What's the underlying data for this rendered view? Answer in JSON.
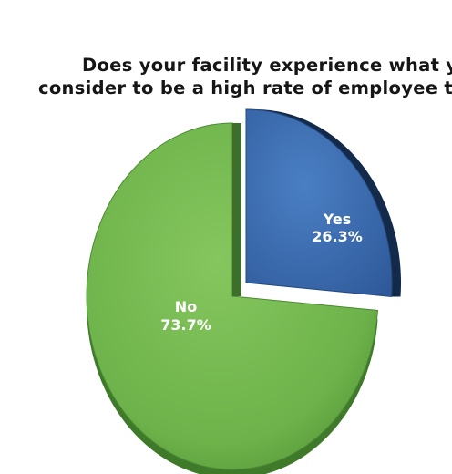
{
  "chart_data": {
    "type": "pie",
    "title_lines": [
      "Does your facility experience what you",
      "consider to be a high rate of employee turnov"
    ],
    "slices": [
      {
        "name": "Yes",
        "value": 26.3,
        "label": "26.3%",
        "color": "#3f6fb3",
        "exploded": true
      },
      {
        "name": "No",
        "value": 73.7,
        "label": "73.7%",
        "color": "#73b84f",
        "exploded": false
      }
    ],
    "style": "3d",
    "legend": "none"
  }
}
